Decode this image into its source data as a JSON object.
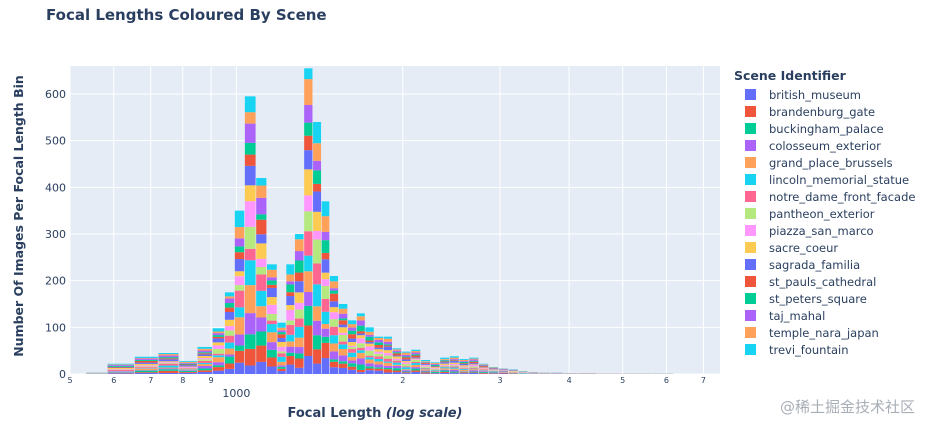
{
  "watermark": "@稀土掘金技术社区",
  "chart_data": {
    "type": "bar",
    "barmode": "stack",
    "title": "Focal Lengths Coloured By Scene",
    "xlabel_prefix": "Focal Length ",
    "xlabel_italic": "(log scale)",
    "ylabel": "Number Of Images Per Focal Length Bin",
    "x_scale": "log",
    "xlim": [
      500,
      7500
    ],
    "ylim": [
      0,
      660
    ],
    "grid": true,
    "legend_title": "Scene Identifier",
    "legend_position": "right",
    "y_ticks": [
      0,
      100,
      200,
      300,
      400,
      500,
      600
    ],
    "x_ticks": [
      {
        "value": 500,
        "label": "5"
      },
      {
        "value": 600,
        "label": "6"
      },
      {
        "value": 700,
        "label": "7"
      },
      {
        "value": 800,
        "label": "8"
      },
      {
        "value": 900,
        "label": "9"
      },
      {
        "value": 1000,
        "label": "1000"
      },
      {
        "value": 2000,
        "label": "2"
      },
      {
        "value": 3000,
        "label": "3"
      },
      {
        "value": 4000,
        "label": "4"
      },
      {
        "value": 5000,
        "label": "5"
      },
      {
        "value": 6000,
        "label": "6"
      },
      {
        "value": 7000,
        "label": "7"
      }
    ],
    "bin_totals": [
      {
        "x": 550,
        "total": 3
      },
      {
        "x": 620,
        "total": 22
      },
      {
        "x": 690,
        "total": 37
      },
      {
        "x": 755,
        "total": 45
      },
      {
        "x": 820,
        "total": 28
      },
      {
        "x": 880,
        "total": 58
      },
      {
        "x": 930,
        "total": 98
      },
      {
        "x": 975,
        "total": 175
      },
      {
        "x": 1010,
        "total": 350
      },
      {
        "x": 1060,
        "total": 595
      },
      {
        "x": 1110,
        "total": 420
      },
      {
        "x": 1160,
        "total": 235
      },
      {
        "x": 1210,
        "total": 110
      },
      {
        "x": 1250,
        "total": 235
      },
      {
        "x": 1300,
        "total": 300
      },
      {
        "x": 1350,
        "total": 655
      },
      {
        "x": 1400,
        "total": 540
      },
      {
        "x": 1450,
        "total": 370
      },
      {
        "x": 1500,
        "total": 210
      },
      {
        "x": 1560,
        "total": 150
      },
      {
        "x": 1620,
        "total": 115
      },
      {
        "x": 1680,
        "total": 130
      },
      {
        "x": 1740,
        "total": 100
      },
      {
        "x": 1810,
        "total": 80
      },
      {
        "x": 1880,
        "total": 80
      },
      {
        "x": 1950,
        "total": 55
      },
      {
        "x": 2030,
        "total": 48
      },
      {
        "x": 2110,
        "total": 52
      },
      {
        "x": 2200,
        "total": 30
      },
      {
        "x": 2290,
        "total": 25
      },
      {
        "x": 2380,
        "total": 35
      },
      {
        "x": 2480,
        "total": 38
      },
      {
        "x": 2580,
        "total": 32
      },
      {
        "x": 2690,
        "total": 35
      },
      {
        "x": 2800,
        "total": 22
      },
      {
        "x": 2920,
        "total": 15
      },
      {
        "x": 3040,
        "total": 12
      },
      {
        "x": 3170,
        "total": 10
      },
      {
        "x": 3300,
        "total": 6
      },
      {
        "x": 3440,
        "total": 4
      },
      {
        "x": 3600,
        "total": 3
      },
      {
        "x": 3800,
        "total": 3
      },
      {
        "x": 4000,
        "total": 2
      },
      {
        "x": 4300,
        "total": 2
      },
      {
        "x": 4700,
        "total": 1
      },
      {
        "x": 5300,
        "total": 1
      },
      {
        "x": 6000,
        "total": 1
      }
    ],
    "series": [
      {
        "name": "british_museum",
        "color": "#636efa"
      },
      {
        "name": "brandenburg_gate",
        "color": "#EF553B"
      },
      {
        "name": "buckingham_palace",
        "color": "#00cc96"
      },
      {
        "name": "colosseum_exterior",
        "color": "#ab63fa"
      },
      {
        "name": "grand_place_brussels",
        "color": "#FFA15A"
      },
      {
        "name": "lincoln_memorial_statue",
        "color": "#19d3f3"
      },
      {
        "name": "notre_dame_front_facade",
        "color": "#FF6692"
      },
      {
        "name": "pantheon_exterior",
        "color": "#B6E880"
      },
      {
        "name": "piazza_san_marco",
        "color": "#FF97FF"
      },
      {
        "name": "sacre_coeur",
        "color": "#FECB52"
      },
      {
        "name": "sagrada_familia",
        "color": "#636efa"
      },
      {
        "name": "st_pauls_cathedral",
        "color": "#EF553B"
      },
      {
        "name": "st_peters_square",
        "color": "#00cc96"
      },
      {
        "name": "taj_mahal",
        "color": "#ab63fa"
      },
      {
        "name": "temple_nara_japan",
        "color": "#FFA15A"
      },
      {
        "name": "trevi_fountain",
        "color": "#19d3f3"
      }
    ]
  }
}
